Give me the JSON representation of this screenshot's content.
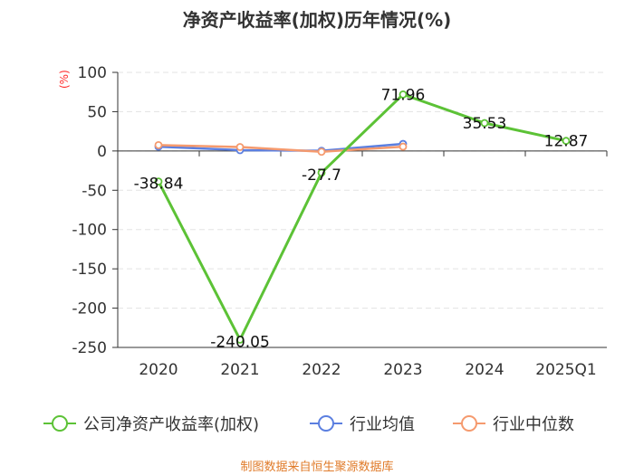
{
  "chart_data": {
    "type": "line",
    "title": "净资产收益率(加权)历年情况(%)",
    "ylabel": "(%)",
    "categories": [
      "2020",
      "2021",
      "2022",
      "2023",
      "2024",
      "2025Q1"
    ],
    "ylim": [
      -250,
      100
    ],
    "yticks": [
      100,
      50,
      0,
      -50,
      -100,
      -150,
      -200,
      -250
    ],
    "series": [
      {
        "name": "公司净资产收益率(加权)",
        "color": "#5cc236",
        "values": [
          -38.84,
          -240.05,
          -27.7,
          71.96,
          35.53,
          12.87
        ],
        "labels": [
          "-38.84",
          "-240.05",
          "-27.7",
          "71.96",
          "35.53",
          "12.87"
        ]
      },
      {
        "name": "行业均值",
        "color": "#5b7fe0",
        "values": [
          5.5,
          1.0,
          0.3,
          9.0,
          null,
          null
        ]
      },
      {
        "name": "行业中位数",
        "color": "#f59a6e",
        "values": [
          7.5,
          5.0,
          -1.0,
          5.5,
          null,
          null
        ]
      }
    ],
    "grid": true,
    "legend": "bottom"
  },
  "source": "制图数据来自恒生聚源数据库"
}
